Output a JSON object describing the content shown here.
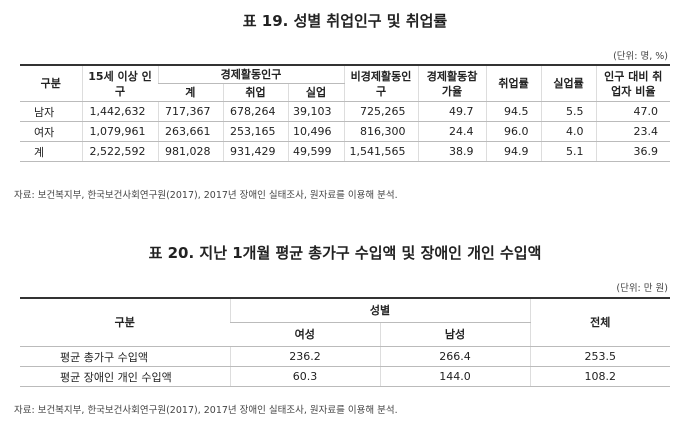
{
  "tables": [
    {
      "title": "표 19. 성별 취업인구 및 취업률",
      "unit": "(단위: 명, %)",
      "header": {
        "top": [
          "구분",
          "15세 이상 인구",
          "경제활동인구",
          "비경제활동인구",
          "경제활동참가율",
          "취업률",
          "실업률",
          "인구 대비 취업자 비율"
        ],
        "sub": [
          "계",
          "취업",
          "실업"
        ]
      },
      "rows": [
        [
          "남자",
          "1,442,632",
          "717,367",
          "678,264",
          "39,103",
          "725,265",
          "49.7",
          "94.5",
          "5.5",
          "47.0"
        ],
        [
          "여자",
          "1,079,961",
          "263,661",
          "253,165",
          "10,496",
          "816,300",
          "24.4",
          "96.0",
          "4.0",
          "23.4"
        ],
        [
          "계",
          "2,522,592",
          "981,028",
          "931,429",
          "49,599",
          "1,541,565",
          "38.9",
          "94.9",
          "5.1",
          "36.9"
        ]
      ],
      "source": "자료: 보건복지부, 한국보건사회연구원(2017), 2017년 장애인 실태조사, 원자료를 이용해 분석."
    },
    {
      "title": "표 20. 지난 1개월 평균 총가구 수입액 및 장애인 개인 수입액",
      "unit": "(단위: 만 원)",
      "header": {
        "top": [
          "구분",
          "성별",
          "전체"
        ],
        "sub": [
          "여성",
          "남성"
        ]
      },
      "rows": [
        [
          "평균 총가구 수입액",
          "236.2",
          "266.4",
          "253.5"
        ],
        [
          "평균 장애인 개인 수입액",
          "60.3",
          "144.0",
          "108.2"
        ]
      ],
      "source": "자료: 보건복지부, 한국보건사회연구원(2017), 2017년 장애인 실태조사, 원자료를 이용해 분석."
    }
  ]
}
